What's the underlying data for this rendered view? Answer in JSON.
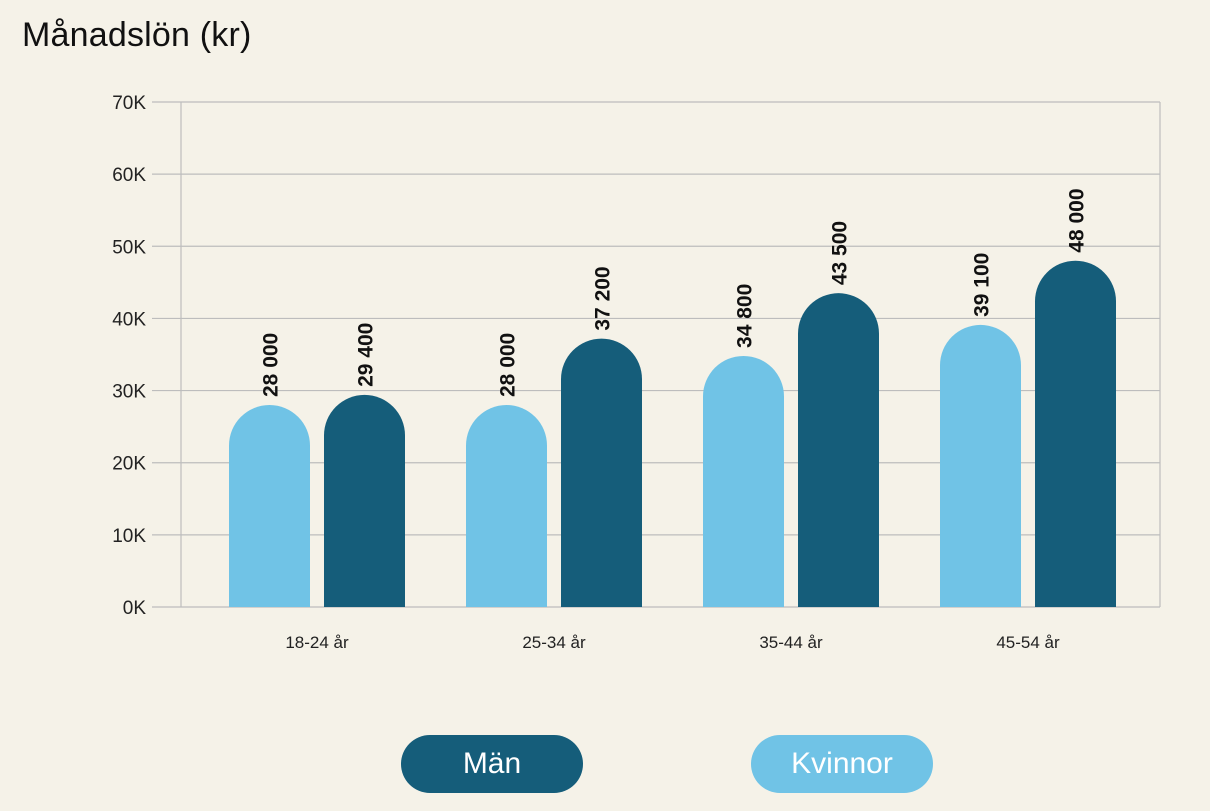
{
  "title": "Månadslön (kr)",
  "legend": {
    "men_label": "Män",
    "women_label": "Kvinnor"
  },
  "colors": {
    "background": "#f5f2e8",
    "men": "#155d7a",
    "women": "#70c3e6",
    "grid": "#bdbdbd",
    "axis_text": "#222222"
  },
  "chart_data": {
    "type": "bar",
    "title": "Månadslön (kr)",
    "xlabel": "",
    "ylabel": "",
    "ylim": [
      0,
      70000
    ],
    "yticks": [
      0,
      10000,
      20000,
      30000,
      40000,
      50000,
      60000,
      70000
    ],
    "ytick_labels": [
      "0K",
      "10K",
      "20K",
      "30K",
      "40K",
      "50K",
      "60K",
      "70K"
    ],
    "categories": [
      "18-24 år",
      "25-34 år",
      "35-44 år",
      "45-54 år"
    ],
    "series": [
      {
        "name": "Kvinnor",
        "values": [
          28000,
          28000,
          34800,
          39100
        ],
        "labels": [
          "28 000",
          "28 000",
          "34 800",
          "39 100"
        ],
        "color": "#70c3e6"
      },
      {
        "name": "Män",
        "values": [
          29400,
          37200,
          43500,
          48000
        ],
        "labels": [
          "29 400",
          "37 200",
          "43 500",
          "48 000"
        ],
        "color": "#155d7a"
      }
    ],
    "grid": true,
    "legend_position": "bottom"
  }
}
